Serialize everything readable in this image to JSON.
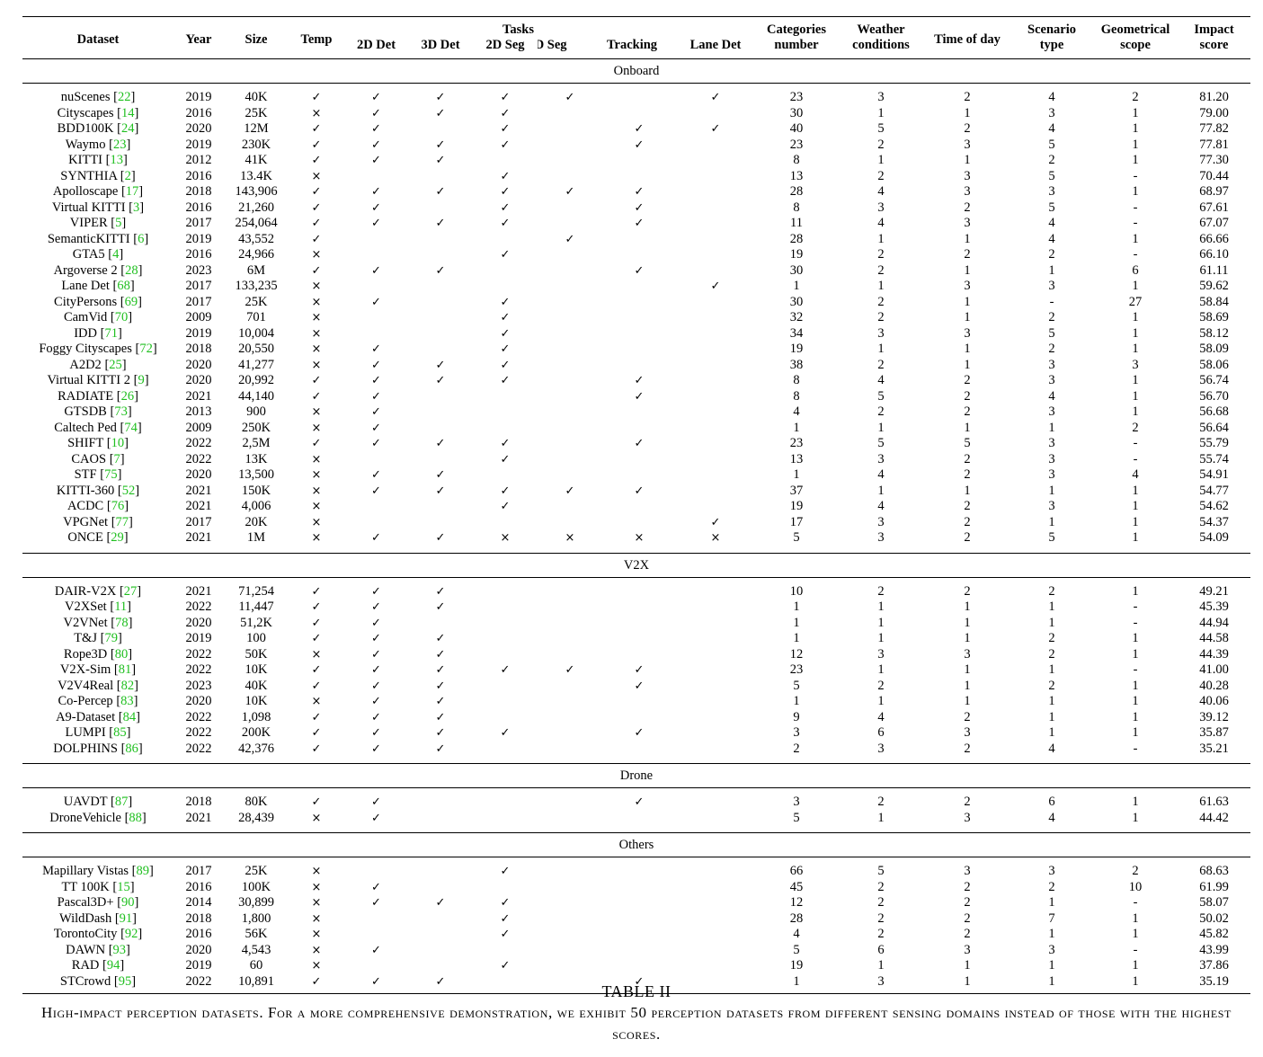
{
  "headers": {
    "dataset": "Dataset",
    "year": "Year",
    "size": "Size",
    "temp": "Temp",
    "tasks": "Tasks",
    "det2d": "2D Det",
    "det3d": "3D Det",
    "seg2d": "2D Seg",
    "seg3d": "3D Seg",
    "tracking": "Tracking",
    "lanedet": "Lane Det",
    "categories_1": "Categories",
    "categories_2": "number",
    "weather_1": "Weather",
    "weather_2": "conditions",
    "timeofday": "Time of day",
    "scenario_1": "Scenario",
    "scenario_2": "type",
    "geo_1": "Geometrical",
    "geo_2": "scope",
    "impact_1": "Impact",
    "impact_2": "score"
  },
  "symbols": {
    "check": "✓",
    "cross": "×"
  },
  "sections": [
    {
      "title": "Onboard",
      "rows": [
        [
          "nuScenes",
          "22",
          "2019",
          "40K",
          "✓",
          "✓",
          "✓",
          "✓",
          "✓",
          "",
          "✓",
          "23",
          "3",
          "2",
          "4",
          "2",
          "81.20"
        ],
        [
          "Cityscapes",
          "14",
          "2016",
          "25K",
          "×",
          "✓",
          "✓",
          "✓",
          "",
          "",
          "",
          "30",
          "1",
          "1",
          "3",
          "1",
          "79.00"
        ],
        [
          "BDD100K",
          "24",
          "2020",
          "12M",
          "✓",
          "✓",
          "",
          "✓",
          "",
          "✓",
          "✓",
          "40",
          "5",
          "2",
          "4",
          "1",
          "77.82"
        ],
        [
          "Waymo",
          "23",
          "2019",
          "230K",
          "✓",
          "✓",
          "✓",
          "✓",
          "",
          "✓",
          "",
          "23",
          "2",
          "3",
          "5",
          "1",
          "77.81"
        ],
        [
          "KITTI",
          "13",
          "2012",
          "41K",
          "✓",
          "✓",
          "✓",
          "",
          "",
          "",
          "",
          "8",
          "1",
          "1",
          "2",
          "1",
          "77.30"
        ],
        [
          "SYNTHIA",
          "2",
          "2016",
          "13.4K",
          "×",
          "",
          "",
          "✓",
          "",
          "",
          "",
          "13",
          "2",
          "3",
          "5",
          "-",
          "70.44"
        ],
        [
          "Apolloscape",
          "17",
          "2018",
          "143,906",
          "✓",
          "✓",
          "✓",
          "✓",
          "✓",
          "✓",
          "",
          "28",
          "4",
          "3",
          "3",
          "1",
          "68.97"
        ],
        [
          "Virtual KITTI",
          "3",
          "2016",
          "21,260",
          "✓",
          "✓",
          "",
          "✓",
          "",
          "✓",
          "",
          "8",
          "3",
          "2",
          "5",
          "-",
          "67.61"
        ],
        [
          "VIPER",
          "5",
          "2017",
          "254,064",
          "✓",
          "✓",
          "✓",
          "✓",
          "",
          "✓",
          "",
          "11",
          "4",
          "3",
          "4",
          "-",
          "67.07"
        ],
        [
          "SemanticKITTI",
          "6",
          "2019",
          "43,552",
          "✓",
          "",
          "",
          "",
          "✓",
          "",
          "",
          "28",
          "1",
          "1",
          "4",
          "1",
          "66.66"
        ],
        [
          "GTA5",
          "4",
          "2016",
          "24,966",
          "×",
          "",
          "",
          "✓",
          "",
          "",
          "",
          "19",
          "2",
          "2",
          "2",
          "-",
          "66.10"
        ],
        [
          "Argoverse 2",
          "28",
          "2023",
          "6M",
          "✓",
          "✓",
          "✓",
          "",
          "",
          "✓",
          "",
          "30",
          "2",
          "1",
          "1",
          "6",
          "61.11"
        ],
        [
          "Lane Det",
          "68",
          "2017",
          "133,235",
          "×",
          "",
          "",
          "",
          "",
          "",
          "✓",
          "1",
          "1",
          "3",
          "3",
          "1",
          "59.62"
        ],
        [
          "CityPersons",
          "69",
          "2017",
          "25K",
          "×",
          "✓",
          "",
          "✓",
          "",
          "",
          "",
          "30",
          "2",
          "1",
          "-",
          "27",
          "58.84"
        ],
        [
          "CamVid",
          "70",
          "2009",
          "701",
          "×",
          "",
          "",
          "✓",
          "",
          "",
          "",
          "32",
          "2",
          "1",
          "2",
          "1",
          "58.69"
        ],
        [
          "IDD",
          "71",
          "2019",
          "10,004",
          "×",
          "",
          "",
          "✓",
          "",
          "",
          "",
          "34",
          "3",
          "3",
          "5",
          "1",
          "58.12"
        ],
        [
          "Foggy Cityscapes",
          "72",
          "2018",
          "20,550",
          "×",
          "✓",
          "",
          "✓",
          "",
          "",
          "",
          "19",
          "1",
          "1",
          "2",
          "1",
          "58.09"
        ],
        [
          "A2D2",
          "25",
          "2020",
          "41,277",
          "×",
          "✓",
          "✓",
          "✓",
          "",
          "",
          "",
          "38",
          "2",
          "1",
          "3",
          "3",
          "58.06"
        ],
        [
          "Virtual KITTI 2",
          "9",
          "2020",
          "20,992",
          "✓",
          "✓",
          "✓",
          "✓",
          "",
          "✓",
          "",
          "8",
          "4",
          "2",
          "3",
          "1",
          "56.74"
        ],
        [
          "RADIATE",
          "26",
          "2021",
          "44,140",
          "✓",
          "✓",
          "",
          "",
          "",
          "✓",
          "",
          "8",
          "5",
          "2",
          "4",
          "1",
          "56.70"
        ],
        [
          "GTSDB",
          "73",
          "2013",
          "900",
          "×",
          "✓",
          "",
          "",
          "",
          "",
          "",
          "4",
          "2",
          "2",
          "3",
          "1",
          "56.68"
        ],
        [
          "Caltech Ped",
          "74",
          "2009",
          "250K",
          "×",
          "✓",
          "",
          "",
          "",
          "",
          "",
          "1",
          "1",
          "1",
          "1",
          "2",
          "56.64"
        ],
        [
          "SHIFT",
          "10",
          "2022",
          "2,5M",
          "✓",
          "✓",
          "✓",
          "✓",
          "",
          "✓",
          "",
          "23",
          "5",
          "5",
          "3",
          "-",
          "55.79"
        ],
        [
          "CAOS",
          "7",
          "2022",
          "13K",
          "×",
          "",
          "",
          "✓",
          "",
          "",
          "",
          "13",
          "3",
          "2",
          "3",
          "-",
          "55.74"
        ],
        [
          "STF",
          "75",
          "2020",
          "13,500",
          "×",
          "✓",
          "✓",
          "",
          "",
          "",
          "",
          "1",
          "4",
          "2",
          "3",
          "4",
          "54.91"
        ],
        [
          "KITTI-360",
          "52",
          "2021",
          "150K",
          "×",
          "✓",
          "✓",
          "✓",
          "✓",
          "✓",
          "",
          "37",
          "1",
          "1",
          "1",
          "1",
          "54.77"
        ],
        [
          "ACDC",
          "76",
          "2021",
          "4,006",
          "×",
          "",
          "",
          "✓",
          "",
          "",
          "",
          "19",
          "4",
          "2",
          "3",
          "1",
          "54.62"
        ],
        [
          "VPGNet",
          "77",
          "2017",
          "20K",
          "×",
          "",
          "",
          "",
          "",
          "",
          "✓",
          "17",
          "3",
          "2",
          "1",
          "1",
          "54.37"
        ],
        [
          "ONCE",
          "29",
          "2021",
          "1M",
          "×",
          "✓",
          "✓",
          "×",
          "×",
          "×",
          "×",
          "5",
          "3",
          "2",
          "5",
          "1",
          "54.09"
        ]
      ]
    },
    {
      "title": "V2X",
      "rows": [
        [
          "DAIR-V2X",
          "27",
          "2021",
          "71,254",
          "✓",
          "✓",
          "✓",
          "",
          "",
          "",
          "",
          "10",
          "2",
          "2",
          "2",
          "1",
          "49.21"
        ],
        [
          "V2XSet",
          "11",
          "2022",
          "11,447",
          "✓",
          "✓",
          "✓",
          "",
          "",
          "",
          "",
          "1",
          "1",
          "1",
          "1",
          "-",
          "45.39"
        ],
        [
          "V2VNet",
          "78",
          "2020",
          "51,2K",
          "✓",
          "✓",
          "",
          "",
          "",
          "",
          "",
          "1",
          "1",
          "1",
          "1",
          "-",
          "44.94"
        ],
        [
          "T&J",
          "79",
          "2019",
          "100",
          "✓",
          "✓",
          "✓",
          "",
          "",
          "",
          "",
          "1",
          "1",
          "1",
          "2",
          "1",
          "44.58"
        ],
        [
          "Rope3D",
          "80",
          "2022",
          "50K",
          "×",
          "✓",
          "✓",
          "",
          "",
          "",
          "",
          "12",
          "3",
          "3",
          "2",
          "1",
          "44.39"
        ],
        [
          "V2X-Sim",
          "81",
          "2022",
          "10K",
          "✓",
          "✓",
          "✓",
          "✓",
          "✓",
          "✓",
          "",
          "23",
          "1",
          "1",
          "1",
          "-",
          "41.00"
        ],
        [
          "V2V4Real",
          "82",
          "2023",
          "40K",
          "✓",
          "✓",
          "✓",
          "",
          "",
          "✓",
          "",
          "5",
          "2",
          "1",
          "2",
          "1",
          "40.28"
        ],
        [
          "Co-Percep",
          "83",
          "2020",
          "10K",
          "×",
          "✓",
          "✓",
          "",
          "",
          "",
          "",
          "1",
          "1",
          "1",
          "1",
          "1",
          "40.06"
        ],
        [
          "A9-Dataset",
          "84",
          "2022",
          "1,098",
          "✓",
          "✓",
          "✓",
          "",
          "",
          "",
          "",
          "9",
          "4",
          "2",
          "1",
          "1",
          "39.12"
        ],
        [
          "LUMPI",
          "85",
          "2022",
          "200K",
          "✓",
          "✓",
          "✓",
          "✓",
          "",
          "✓",
          "",
          "3",
          "6",
          "3",
          "1",
          "1",
          "35.87"
        ],
        [
          "DOLPHINS",
          "86",
          "2022",
          "42,376",
          "✓",
          "✓",
          "✓",
          "",
          "",
          "",
          "",
          "2",
          "3",
          "2",
          "4",
          "-",
          "35.21"
        ]
      ]
    },
    {
      "title": "Drone",
      "rows": [
        [
          "UAVDT",
          "87",
          "2018",
          "80K",
          "✓",
          "✓",
          "",
          "",
          "",
          "✓",
          "",
          "3",
          "2",
          "2",
          "6",
          "1",
          "61.63"
        ],
        [
          "DroneVehicle",
          "88",
          "2021",
          "28,439",
          "×",
          "✓",
          "",
          "",
          "",
          "",
          "",
          "5",
          "1",
          "3",
          "4",
          "1",
          "44.42"
        ]
      ]
    },
    {
      "title": "Others",
      "rows": [
        [
          "Mapillary Vistas",
          "89",
          "2017",
          "25K",
          "×",
          "",
          "",
          "✓",
          "",
          "",
          "",
          "66",
          "5",
          "3",
          "3",
          "2",
          "68.63"
        ],
        [
          "TT 100K",
          "15",
          "2016",
          "100K",
          "×",
          "✓",
          "",
          "",
          "",
          "",
          "",
          "45",
          "2",
          "2",
          "2",
          "10",
          "61.99"
        ],
        [
          "Pascal3D+",
          "90",
          "2014",
          "30,899",
          "×",
          "✓",
          "✓",
          "✓",
          "",
          "",
          "",
          "12",
          "2",
          "2",
          "1",
          "-",
          "58.07"
        ],
        [
          "WildDash",
          "91",
          "2018",
          "1,800",
          "×",
          "",
          "",
          "✓",
          "",
          "",
          "",
          "28",
          "2",
          "2",
          "7",
          "1",
          "50.02"
        ],
        [
          "TorontoCity",
          "92",
          "2016",
          "56K",
          "×",
          "",
          "",
          "✓",
          "",
          "",
          "",
          "4",
          "2",
          "2",
          "1",
          "1",
          "45.82"
        ],
        [
          "DAWN",
          "93",
          "2020",
          "4,543",
          "×",
          "✓",
          "",
          "",
          "",
          "",
          "",
          "5",
          "6",
          "3",
          "3",
          "-",
          "43.99"
        ],
        [
          "RAD",
          "94",
          "2019",
          "60",
          "×",
          "",
          "",
          "✓",
          "",
          "",
          "",
          "19",
          "1",
          "1",
          "1",
          "1",
          "37.86"
        ],
        [
          "STCrowd",
          "95",
          "2022",
          "10,891",
          "✓",
          "✓",
          "✓",
          "",
          "",
          "✓",
          "",
          "1",
          "3",
          "1",
          "1",
          "1",
          "35.19"
        ]
      ]
    }
  ],
  "caption": {
    "label": "TABLE II",
    "text": "High-impact perception datasets. For a more comprehensive demonstration, we exhibit 50 perception datasets from different sensing domains instead of those with the highest scores."
  }
}
